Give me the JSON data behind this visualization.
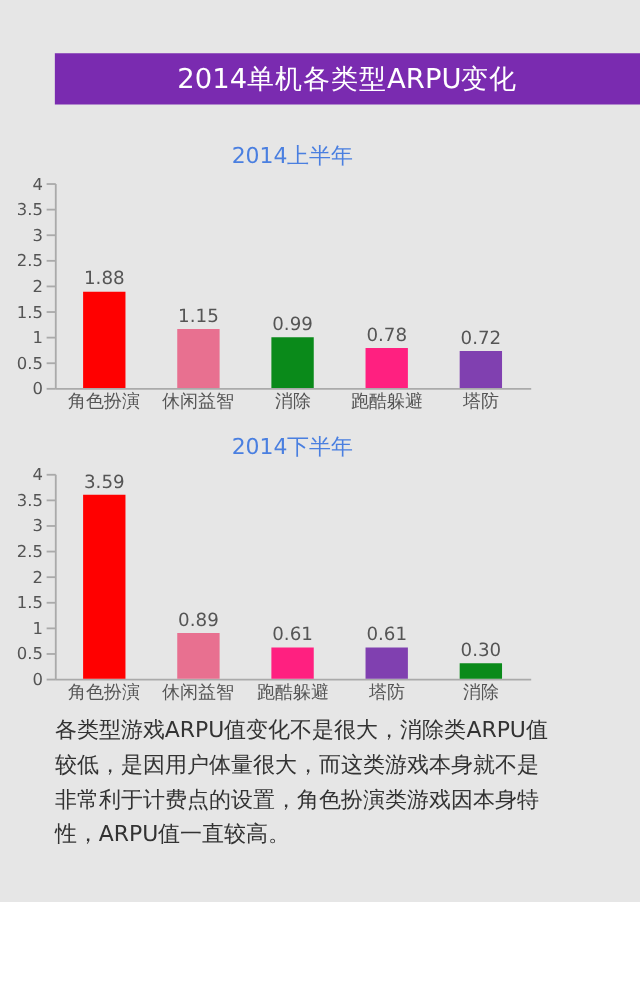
{
  "chart_data": [
    {
      "type": "other",
      "title": "2014单机各类型ARPU变化"
    },
    {
      "type": "bar",
      "title": "2014上半年",
      "categories": [
        "角色扮演",
        "休闲益智",
        "消除",
        "跑酷躲避",
        "塔防"
      ],
      "values": [
        1.88,
        1.15,
        0.99,
        0.78,
        0.72
      ],
      "colors": [
        "#ff0000",
        "#e87090",
        "#0a8a1a",
        "#ff2080",
        "#8040b0"
      ],
      "ylim": [
        0,
        4
      ],
      "yticks": [
        0,
        0.5,
        1,
        1.5,
        2,
        2.5,
        3,
        3.5,
        4
      ],
      "data_labels": true,
      "grid": false
    },
    {
      "type": "bar",
      "title": "2014下半年",
      "categories": [
        "角色扮演",
        "休闲益智",
        "跑酷躲避",
        "塔防",
        "消除"
      ],
      "values": [
        3.59,
        0.89,
        0.61,
        0.61,
        0.3
      ],
      "value_labels": [
        "3.59",
        "0.89",
        "0.61",
        "0.61",
        "0.30"
      ],
      "colors": [
        "#ff0000",
        "#e87090",
        "#ff2080",
        "#8040b0",
        "#0a8a1a"
      ],
      "ylim": [
        0,
        4
      ],
      "yticks": [
        0,
        0.5,
        1,
        1.5,
        2,
        2.5,
        3,
        3.5,
        4
      ],
      "grid": false,
      "annotations": [
        "各类型游戏ARPU值变化不是很大，消除类ARPU值较低，是因用户体量很大，而这类游戏本身就不是非常利于计费点的设置，角色扮演类游戏因本身特性，ARPU值一直较高。"
      ]
    }
  ]
}
